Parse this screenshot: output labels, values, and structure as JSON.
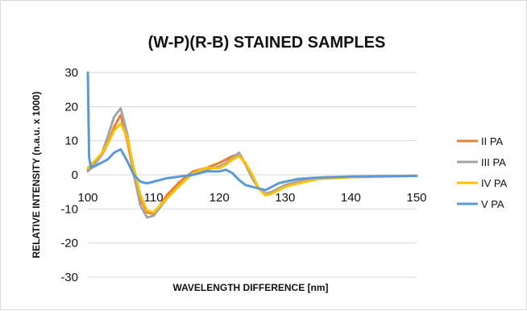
{
  "chart_data": {
    "type": "line",
    "title": "(W-P)(R-B)  STAINED SAMPLES",
    "xlabel": "WAVELENGTH DIFFERENCE [nm]",
    "ylabel": "RELATIVE INTENSITY (n.a.u. x 1000)",
    "xlim": [
      100,
      150
    ],
    "ylim": [
      -30,
      30
    ],
    "x_ticks": [
      "100",
      "110",
      "120",
      "130",
      "140",
      "150"
    ],
    "y_ticks": [
      "30",
      "20",
      "10",
      "0",
      "-10",
      "-20",
      "-30"
    ],
    "grid": true,
    "legend_position": "right",
    "series": [
      {
        "name": "II PA",
        "color": "#ED7D31",
        "x": [
          100,
          101,
          102,
          103,
          104,
          105,
          106,
          107,
          108,
          109,
          110,
          111,
          112,
          114,
          116,
          118,
          120,
          121,
          122,
          123,
          124,
          125,
          126,
          127,
          128,
          129,
          130,
          132,
          135,
          140,
          145,
          150
        ],
        "y": [
          1.5,
          3.5,
          5.5,
          9,
          14,
          17.5,
          10,
          0,
          -7,
          -11,
          -11.5,
          -9,
          -6,
          -2,
          1,
          2,
          3.5,
          4.5,
          5.5,
          6,
          3,
          -1,
          -4,
          -5.5,
          -5,
          -4,
          -3,
          -2,
          -1,
          -0.6,
          -0.4,
          -0.3
        ]
      },
      {
        "name": "III PA",
        "color": "#A5A5A5",
        "x": [
          100,
          101,
          102,
          103,
          104,
          105,
          106,
          107,
          108,
          109,
          110,
          111,
          112,
          114,
          116,
          118,
          120,
          121,
          122,
          123,
          124,
          125,
          126,
          127,
          128,
          129,
          130,
          132,
          135,
          140,
          145,
          150
        ],
        "y": [
          1,
          3,
          5.5,
          11,
          17,
          19.5,
          12,
          0,
          -9,
          -12.5,
          -12,
          -9.5,
          -7,
          -3,
          0.5,
          1.5,
          2.5,
          3.5,
          5,
          6.5,
          3,
          -1,
          -4,
          -5.5,
          -5,
          -4,
          -3,
          -2,
          -1,
          -0.6,
          -0.4,
          -0.3
        ]
      },
      {
        "name": "IV PA",
        "color": "#FFC000",
        "x": [
          100,
          101,
          102,
          103,
          104,
          105,
          106,
          107,
          108,
          109,
          110,
          111,
          112,
          114,
          116,
          118,
          120,
          121,
          122,
          123,
          124,
          125,
          126,
          127,
          128,
          129,
          130,
          132,
          135,
          140,
          145,
          150
        ],
        "y": [
          2,
          4,
          6,
          9,
          13,
          15,
          11,
          2,
          -6,
          -10.5,
          -11,
          -9,
          -7,
          -3,
          0.5,
          2,
          2,
          3,
          4.5,
          5.5,
          3.5,
          0,
          -4,
          -6,
          -5.5,
          -4.5,
          -3.5,
          -2.5,
          -1.2,
          -0.7,
          -0.5,
          -0.3
        ]
      },
      {
        "name": "V PA",
        "color": "#5B9BD5",
        "x": [
          100,
          100.2,
          100.5,
          101,
          102,
          103,
          104,
          105,
          106,
          107,
          108,
          109,
          110,
          112,
          114,
          116,
          118,
          120,
          121,
          122,
          123,
          124,
          125,
          126,
          127,
          128,
          129,
          130,
          132,
          135,
          140,
          145,
          150
        ],
        "y": [
          30,
          5,
          2,
          2.5,
          3.5,
          4.5,
          6.5,
          7.5,
          4,
          0,
          -2,
          -2.5,
          -2,
          -1,
          -0.5,
          0,
          1,
          1,
          1.5,
          0.5,
          -1.5,
          -3,
          -3.5,
          -4,
          -4.5,
          -3.5,
          -2.5,
          -2,
          -1.2,
          -0.8,
          -0.5,
          -0.4,
          -0.3
        ]
      }
    ]
  }
}
